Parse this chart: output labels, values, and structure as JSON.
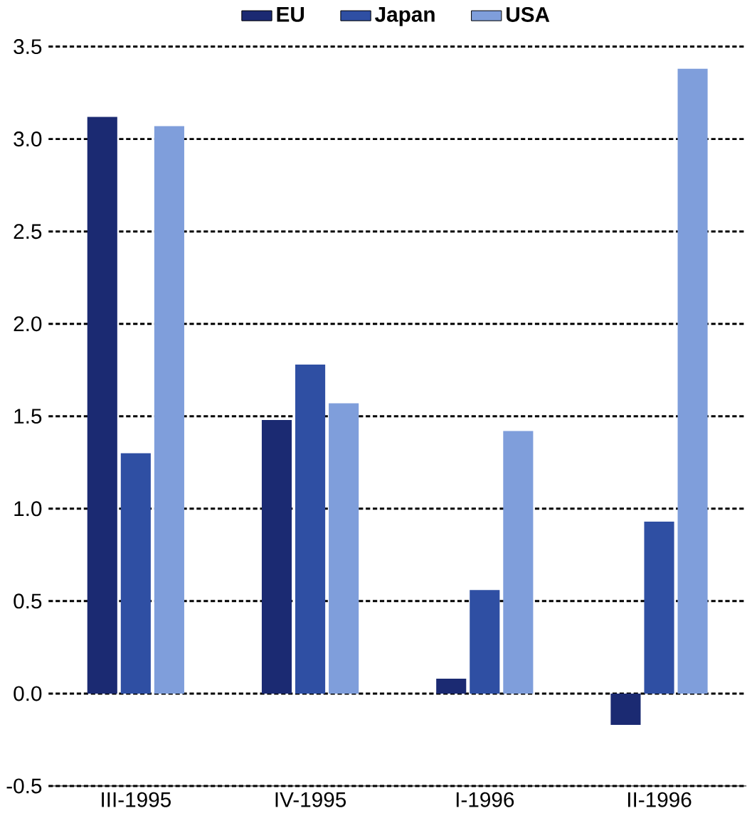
{
  "chart_data": {
    "type": "bar",
    "categories": [
      "III-1995",
      "IV-1995",
      "I-1996",
      "II-1996"
    ],
    "series": [
      {
        "name": "EU",
        "color": "#1b2a72",
        "values": [
          3.12,
          1.48,
          0.08,
          -0.17
        ]
      },
      {
        "name": "Japan",
        "color": "#2f4fa3",
        "values": [
          1.3,
          1.78,
          0.56,
          0.93
        ]
      },
      {
        "name": "USA",
        "color": "#7f9edb",
        "values": [
          3.07,
          1.57,
          1.42,
          3.38
        ]
      }
    ],
    "ylim": [
      -0.5,
      3.5
    ],
    "yticks": [
      {
        "value": -0.5,
        "label": "-0.5"
      },
      {
        "value": 0,
        "label": "0.0"
      },
      {
        "value": 0.5,
        "label": "0.5"
      },
      {
        "value": 1,
        "label": "1.0"
      },
      {
        "value": 1.5,
        "label": "1.5"
      },
      {
        "value": 2,
        "label": "2.0"
      },
      {
        "value": 2.5,
        "label": "2.5"
      },
      {
        "value": 3,
        "label": "3.0"
      },
      {
        "value": 3.5,
        "label": "3.5"
      }
    ],
    "grid": "y",
    "legend": "top"
  }
}
